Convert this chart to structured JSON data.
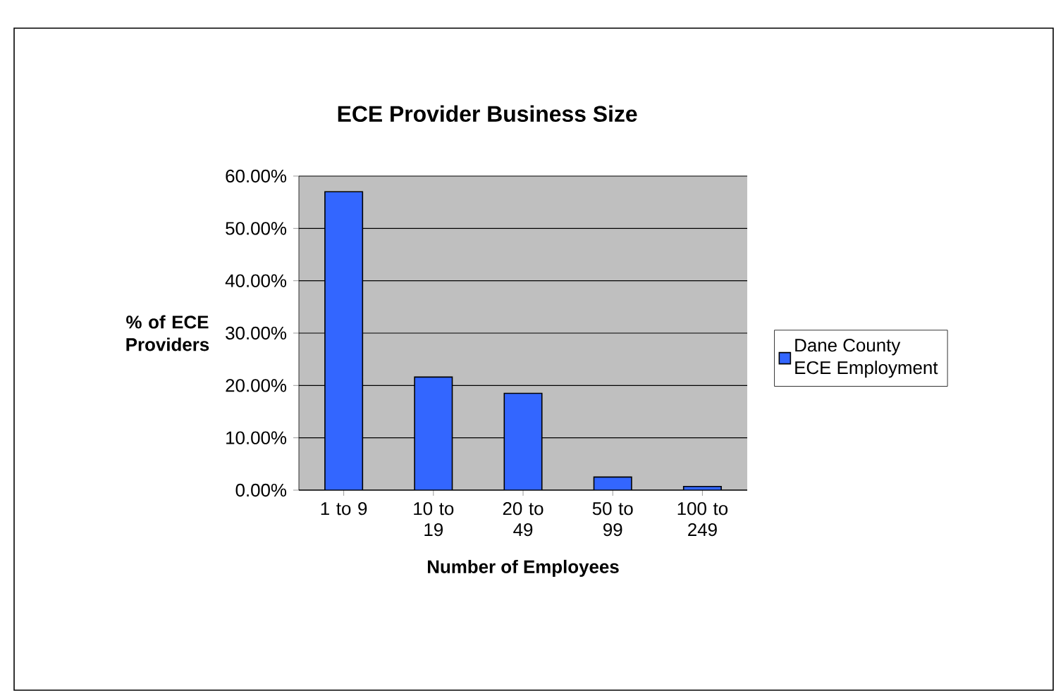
{
  "chart_data": {
    "type": "bar",
    "title": "ECE Provider Business Size",
    "xlabel": "Number of Employees",
    "ylabel": "% of ECE Providers",
    "categories": [
      "1 to 9",
      "10 to 19",
      "20 to 49",
      "50 to 99",
      "100 to 249"
    ],
    "series": [
      {
        "name": "Dane County ECE Employment",
        "color": "#3366ff",
        "values": [
          57,
          21.6,
          18.5,
          2.5,
          0.7
        ]
      }
    ],
    "ylim": [
      0,
      60
    ],
    "yticks": [
      {
        "value": 0,
        "label": "0.00%"
      },
      {
        "value": 10,
        "label": "10.00%"
      },
      {
        "value": 20,
        "label": "20.00%"
      },
      {
        "value": 30,
        "label": "30.00%"
      },
      {
        "value": 40,
        "label": "40.00%"
      },
      {
        "value": 50,
        "label": "50.00%"
      },
      {
        "value": 60,
        "label": "60.00%"
      }
    ],
    "grid": "y",
    "legend": "right"
  }
}
